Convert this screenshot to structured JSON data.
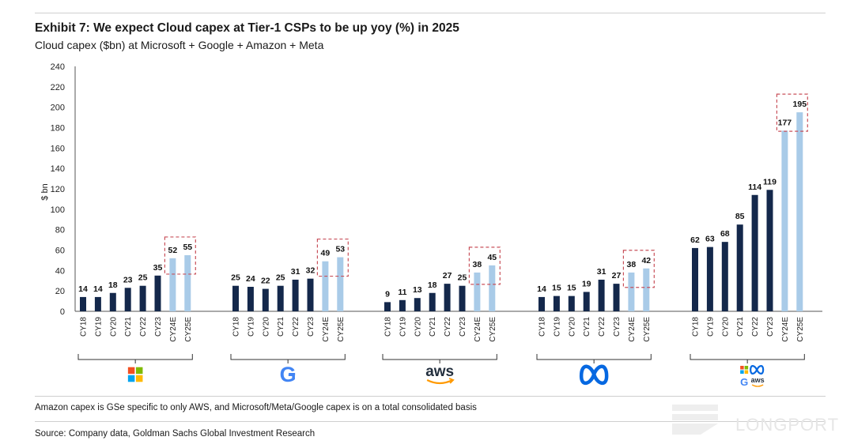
{
  "title": "Exhibit 7: We expect Cloud capex at Tier-1 CSPs to be up yoy (%) in 2025",
  "subtitle": "Cloud capex ($bn) at Microsoft + Google + Amazon + Meta",
  "footnote": "Amazon capex is GSe specific to only AWS, and Microsoft/Meta/Google capex is on a total consolidated basis",
  "source": "Source: Company data, Goldman Sachs Global Investment Research",
  "watermark": "LONGPORT",
  "colors": {
    "actual": "#14284b",
    "estimate": "#a9cbe8",
    "highlight_box": "#c8505a",
    "axis": "#444444"
  },
  "chart_data": {
    "type": "bar",
    "ylabel": "$ bn",
    "ylim": [
      0,
      240
    ],
    "yticks": [
      "0",
      "20",
      "40",
      "60",
      "80",
      "100",
      "120",
      "140",
      "160",
      "180",
      "200",
      "220",
      "240"
    ],
    "categories": [
      "CY18",
      "CY19",
      "CY20",
      "CY21",
      "CY22",
      "CY23",
      "CY24E",
      "CY25E"
    ],
    "estimate_categories": [
      "CY24E",
      "CY25E"
    ],
    "groups": [
      {
        "name": "Microsoft",
        "icon": "microsoft-logo-icon",
        "values": [
          14,
          14,
          18,
          23,
          25,
          35,
          52,
          55
        ]
      },
      {
        "name": "Google",
        "icon": "google-logo-icon",
        "values": [
          25,
          24,
          22,
          25,
          31,
          32,
          49,
          53
        ]
      },
      {
        "name": "Amazon",
        "icon": "aws-logo-icon",
        "logo_text": "aws",
        "values": [
          9,
          11,
          13,
          18,
          27,
          25,
          38,
          45
        ]
      },
      {
        "name": "Meta",
        "icon": "meta-logo-icon",
        "values": [
          14,
          15,
          15,
          19,
          31,
          27,
          38,
          42
        ]
      },
      {
        "name": "Total",
        "icon": "combined-logos-icon",
        "logo_text": "aws",
        "values": [
          62,
          63,
          68,
          85,
          114,
          119,
          177,
          195
        ]
      }
    ]
  }
}
